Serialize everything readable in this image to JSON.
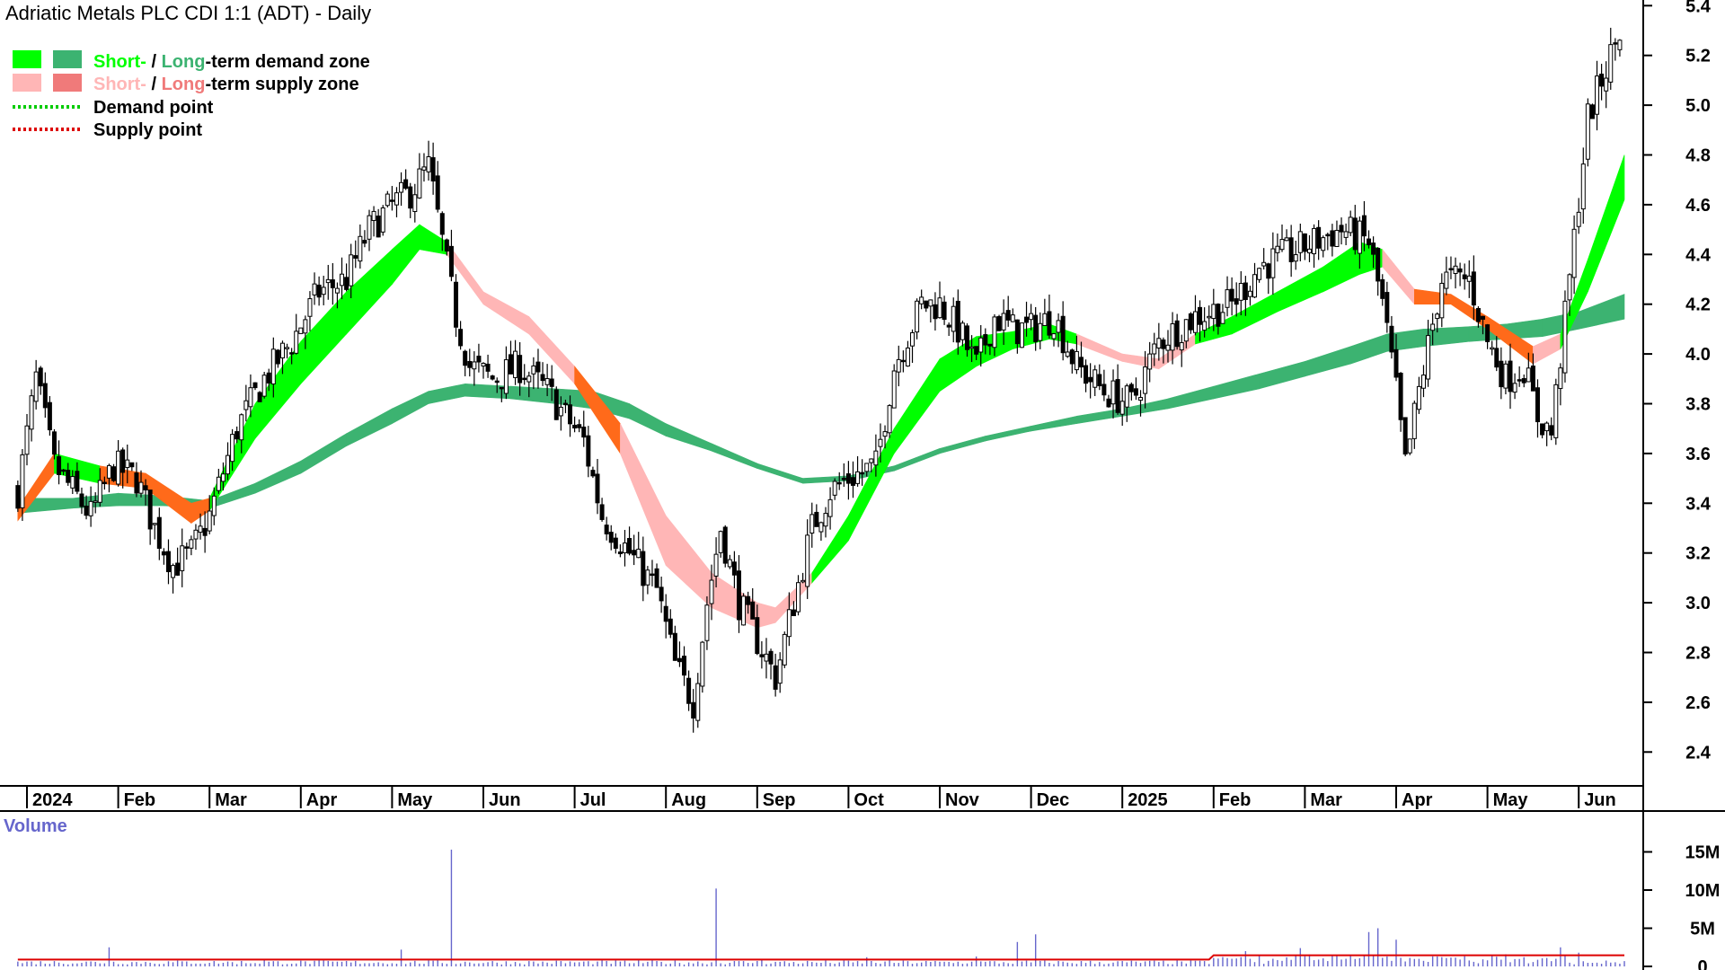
{
  "colors": {
    "short_demand": "#00ff00",
    "long_demand": "#3cb371",
    "short_supply": "#ffb6b6",
    "long_supply": "#f07a7a",
    "transition_zone": "#ff6a1a",
    "demand_point": "#00cc00",
    "supply_point": "#dd0000",
    "volume_bars": "#6666cc",
    "volume_avg": "#dd0000",
    "axis": "#000000"
  },
  "legend": {
    "demand_short": "Short-",
    "demand_sep": " / ",
    "demand_long": "Long",
    "demand_rest": "-term demand zone",
    "supply_short": "Short-",
    "supply_sep": " / ",
    "supply_long": "Long",
    "supply_rest": "-term supply zone",
    "demand_point": "Demand point",
    "supply_point": "Supply point"
  },
  "chart_data": [
    {
      "type": "candlestick",
      "title": "Adriatic Metals PLC CDI 1:1 (ADT) - Daily",
      "ylim": [
        2.3,
        5.5
      ],
      "y_ticks": [
        "5.4",
        "5.2",
        "5.0",
        "4.8",
        "4.6",
        "4.4",
        "4.2",
        "4.0",
        "3.8",
        "3.6",
        "3.4",
        "3.2",
        "3.0",
        "2.8",
        "2.6",
        "2.4"
      ],
      "x_ticks": [
        "2024",
        "Feb",
        "Mar",
        "Apr",
        "May",
        "Jun",
        "Jul",
        "Aug",
        "Sep",
        "Oct",
        "Nov",
        "Dec",
        "2025",
        "Feb",
        "Mar",
        "Apr",
        "May",
        "Jun"
      ],
      "x_tick_months": [
        0,
        1,
        2,
        3,
        4,
        5,
        6,
        7,
        8,
        9,
        10,
        11,
        12,
        13,
        14,
        15,
        16,
        17
      ],
      "close_anchors": [
        [
          -0.1,
          3.45
        ],
        [
          0.1,
          3.9
        ],
        [
          0.3,
          3.55
        ],
        [
          0.5,
          3.45
        ],
        [
          0.7,
          3.35
        ],
        [
          0.95,
          3.55
        ],
        [
          1.2,
          3.5
        ],
        [
          1.4,
          3.3
        ],
        [
          1.6,
          3.15
        ],
        [
          1.8,
          3.2
        ],
        [
          2.0,
          3.35
        ],
        [
          2.3,
          3.7
        ],
        [
          2.6,
          3.9
        ],
        [
          2.9,
          4.05
        ],
        [
          3.2,
          4.25
        ],
        [
          3.5,
          4.3
        ],
        [
          3.75,
          4.5
        ],
        [
          4.0,
          4.6
        ],
        [
          4.2,
          4.65
        ],
        [
          4.4,
          4.75
        ],
        [
          4.55,
          4.45
        ],
        [
          4.7,
          4.15
        ],
        [
          4.85,
          3.95
        ],
        [
          5.1,
          3.9
        ],
        [
          5.4,
          3.95
        ],
        [
          5.7,
          3.85
        ],
        [
          5.9,
          3.75
        ],
        [
          6.1,
          3.65
        ],
        [
          6.3,
          3.35
        ],
        [
          6.6,
          3.2
        ],
        [
          6.9,
          3.05
        ],
        [
          7.1,
          2.75
        ],
        [
          7.3,
          2.6
        ],
        [
          7.45,
          3.0
        ],
        [
          7.6,
          3.3
        ],
        [
          7.8,
          3.0
        ],
        [
          8.0,
          2.85
        ],
        [
          8.2,
          2.7
        ],
        [
          8.4,
          3.0
        ],
        [
          8.6,
          3.3
        ],
        [
          8.8,
          3.45
        ],
        [
          9.0,
          3.5
        ],
        [
          9.3,
          3.55
        ],
        [
          9.5,
          3.95
        ],
        [
          9.8,
          4.2
        ],
        [
          10.0,
          4.2
        ],
        [
          10.2,
          4.1
        ],
        [
          10.4,
          3.95
        ],
        [
          10.6,
          4.15
        ],
        [
          10.8,
          4.1
        ],
        [
          11.0,
          4.1
        ],
        [
          11.25,
          4.15
        ],
        [
          11.5,
          3.95
        ],
        [
          11.8,
          3.85
        ],
        [
          12.1,
          3.8
        ],
        [
          12.4,
          4.05
        ],
        [
          12.8,
          4.15
        ],
        [
          13.2,
          4.2
        ],
        [
          13.5,
          4.35
        ],
        [
          13.8,
          4.4
        ],
        [
          14.1,
          4.45
        ],
        [
          14.4,
          4.5
        ],
        [
          14.7,
          4.45
        ],
        [
          14.85,
          4.2
        ],
        [
          15.0,
          3.85
        ],
        [
          15.1,
          3.55
        ],
        [
          15.25,
          3.85
        ],
        [
          15.5,
          4.3
        ],
        [
          15.8,
          4.3
        ],
        [
          16.0,
          4.05
        ],
        [
          16.2,
          3.9
        ],
        [
          16.4,
          3.95
        ],
        [
          16.55,
          3.75
        ],
        [
          16.7,
          3.68
        ],
        [
          16.9,
          4.3
        ],
        [
          17.1,
          4.95
        ],
        [
          17.3,
          5.15
        ],
        [
          17.5,
          5.35
        ]
      ],
      "short_term_zone": [
        [
          -0.1,
          3.38,
          3.33,
          "supply"
        ],
        [
          0.3,
          3.6,
          3.52,
          "demand"
        ],
        [
          0.8,
          3.55,
          3.48,
          "supply"
        ],
        [
          1.3,
          3.52,
          3.46,
          "supply"
        ],
        [
          1.8,
          3.4,
          3.32,
          "supply"
        ],
        [
          2.0,
          3.42,
          3.37,
          "demand"
        ],
        [
          2.5,
          3.8,
          3.66,
          "demand"
        ],
        [
          3.0,
          4.05,
          3.88,
          "demand"
        ],
        [
          3.5,
          4.25,
          4.08,
          "demand"
        ],
        [
          4.0,
          4.42,
          4.28,
          "demand"
        ],
        [
          4.3,
          4.52,
          4.42,
          "demand"
        ],
        [
          4.6,
          4.45,
          4.4,
          "supply"
        ],
        [
          5.0,
          4.25,
          4.2,
          "supply"
        ],
        [
          5.5,
          4.15,
          4.08,
          "supply"
        ],
        [
          6.0,
          3.95,
          3.88,
          "supply"
        ],
        [
          6.5,
          3.72,
          3.6,
          "supply"
        ],
        [
          7.0,
          3.35,
          3.15,
          "supply"
        ],
        [
          7.5,
          3.12,
          2.98,
          "supply"
        ],
        [
          8.0,
          3.0,
          2.9,
          "supply"
        ],
        [
          8.2,
          2.98,
          2.92,
          "supply"
        ],
        [
          8.6,
          3.12,
          3.08,
          "demand"
        ],
        [
          9.0,
          3.35,
          3.25,
          "demand"
        ],
        [
          9.5,
          3.7,
          3.6,
          "demand"
        ],
        [
          10.0,
          3.98,
          3.85,
          "demand"
        ],
        [
          10.4,
          4.07,
          3.95,
          "demand"
        ],
        [
          10.8,
          4.09,
          4.02,
          "demand"
        ],
        [
          11.2,
          4.12,
          4.06,
          "demand"
        ],
        [
          11.5,
          4.08,
          4.04,
          "supply"
        ],
        [
          12.0,
          4.0,
          3.97,
          "supply"
        ],
        [
          12.4,
          3.98,
          3.94,
          "supply"
        ],
        [
          12.8,
          4.08,
          4.04,
          "demand"
        ],
        [
          13.2,
          4.15,
          4.08,
          "demand"
        ],
        [
          13.7,
          4.25,
          4.17,
          "demand"
        ],
        [
          14.2,
          4.35,
          4.25,
          "demand"
        ],
        [
          14.6,
          4.45,
          4.32,
          "demand"
        ],
        [
          14.85,
          4.42,
          4.35,
          "supply"
        ],
        [
          15.2,
          4.26,
          4.2,
          "supply"
        ],
        [
          15.6,
          4.24,
          4.2,
          "supply"
        ],
        [
          16.0,
          4.15,
          4.1,
          "supply"
        ],
        [
          16.5,
          4.03,
          3.96,
          "supply"
        ],
        [
          16.8,
          4.08,
          4.02,
          "demand"
        ],
        [
          17.1,
          4.38,
          4.25,
          "demand"
        ],
        [
          17.5,
          4.8,
          4.62,
          "demand"
        ]
      ],
      "long_term_zone": [
        [
          -0.1,
          3.42,
          3.36
        ],
        [
          0.5,
          3.42,
          3.38
        ],
        [
          1.0,
          3.44,
          3.39
        ],
        [
          1.5,
          3.43,
          3.39
        ],
        [
          2.0,
          3.38,
          3.41
        ],
        [
          2.5,
          3.44,
          3.48
        ],
        [
          3.0,
          3.52,
          3.57
        ],
        [
          3.5,
          3.63,
          3.68
        ],
        [
          4.0,
          3.72,
          3.78
        ],
        [
          4.4,
          3.8,
          3.85
        ],
        [
          4.8,
          3.83,
          3.88
        ],
        [
          5.3,
          3.82,
          3.87
        ],
        [
          5.8,
          3.8,
          3.86
        ],
        [
          6.2,
          3.78,
          3.85
        ],
        [
          6.6,
          3.74,
          3.8
        ],
        [
          7.0,
          3.67,
          3.72
        ],
        [
          7.5,
          3.61,
          3.64
        ],
        [
          8.0,
          3.54,
          3.56
        ],
        [
          8.5,
          3.48,
          3.5
        ],
        [
          9.0,
          3.49,
          3.51
        ],
        [
          9.5,
          3.53,
          3.55
        ],
        [
          10.0,
          3.6,
          3.62
        ],
        [
          10.5,
          3.65,
          3.67
        ],
        [
          11.0,
          3.69,
          3.71
        ],
        [
          11.5,
          3.72,
          3.75
        ],
        [
          12.0,
          3.75,
          3.78
        ],
        [
          12.5,
          3.78,
          3.82
        ],
        [
          13.0,
          3.82,
          3.87
        ],
        [
          13.5,
          3.86,
          3.92
        ],
        [
          14.0,
          3.91,
          3.97
        ],
        [
          14.5,
          3.96,
          4.03
        ],
        [
          14.9,
          4.01,
          4.08
        ],
        [
          15.3,
          4.03,
          4.1
        ],
        [
          15.8,
          4.05,
          4.11
        ],
        [
          16.2,
          4.06,
          4.12
        ],
        [
          16.6,
          4.07,
          4.14
        ],
        [
          17.0,
          4.1,
          4.17
        ],
        [
          17.5,
          4.14,
          4.24
        ]
      ]
    },
    {
      "type": "bar",
      "title": "Volume",
      "y_ticks": [
        "15M",
        "10M",
        "5M",
        "0"
      ],
      "ylim": [
        0,
        16
      ],
      "spikes": [
        [
          0.9,
          2.5
        ],
        [
          2.6,
          1.0
        ],
        [
          4.1,
          2.2
        ],
        [
          4.65,
          15.3
        ],
        [
          7.55,
          10.2
        ],
        [
          8.05,
          1.0
        ],
        [
          9.2,
          1.2
        ],
        [
          10.4,
          1.3
        ],
        [
          10.85,
          3.2
        ],
        [
          11.05,
          4.2
        ],
        [
          13.35,
          2.0
        ],
        [
          13.95,
          2.4
        ],
        [
          14.7,
          4.5
        ],
        [
          14.8,
          5.0
        ],
        [
          15.0,
          3.5
        ],
        [
          16.8,
          2.5
        ],
        [
          17.0,
          1.8
        ]
      ],
      "average_level": 0.9
    }
  ]
}
